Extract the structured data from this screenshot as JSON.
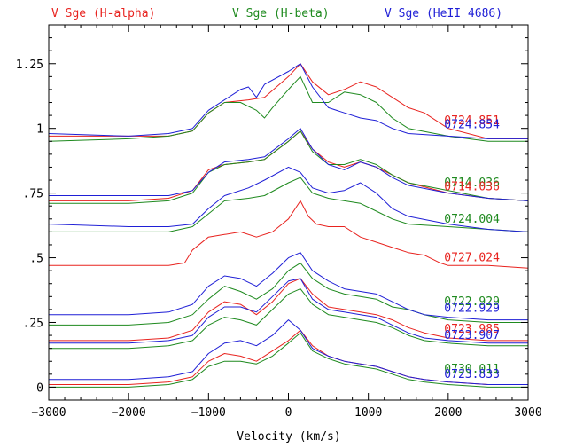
{
  "chart_data": {
    "type": "line",
    "title": "",
    "xlabel": "Velocity (km/s)",
    "ylabel": "",
    "xlim": [
      -3000,
      3000
    ],
    "ylim": [
      -0.05,
      1.4
    ],
    "x_ticks": [
      -3000,
      -2000,
      -1000,
      0,
      1000,
      2000,
      3000
    ],
    "x_tick_labels": [
      "−3000",
      "−2000",
      "−1000",
      "0",
      "1000",
      "2000",
      "3000"
    ],
    "y_ticks": [
      0,
      0.25,
      0.5,
      0.75,
      1,
      1.25
    ],
    "y_tick_labels": [
      "0",
      ".25",
      ".5",
      ".75",
      "1",
      "1.25"
    ],
    "grid": false,
    "legend": [
      {
        "label": "V Sge (H-alpha)",
        "color": "#e8231f"
      },
      {
        "label": "V Sge (H-beta)",
        "color": "#1f8a1f"
      },
      {
        "label": "V Sge (HeII 4686)",
        "color": "#1f1fd6"
      }
    ],
    "annotations": [
      {
        "text": "0724.851",
        "color": "#e8231f",
        "x": 1950,
        "y": 1.03
      },
      {
        "text": "0724.854",
        "color": "#1f1fd6",
        "x": 1950,
        "y": 1.015
      },
      {
        "text": "0714.036",
        "color": "#1f8a1f",
        "x": 1950,
        "y": 0.79
      },
      {
        "text": "0714.036",
        "color": "#e8231f",
        "x": 1950,
        "y": 0.775
      },
      {
        "text": "0724.004",
        "color": "#1f8a1f",
        "x": 1950,
        "y": 0.65
      },
      {
        "text": "0727.024",
        "color": "#e8231f",
        "x": 1950,
        "y": 0.5
      },
      {
        "text": "0722.929",
        "color": "#1f8a1f",
        "x": 1950,
        "y": 0.33
      },
      {
        "text": "0722.929",
        "color": "#1f1fd6",
        "x": 1950,
        "y": 0.305
      },
      {
        "text": "0723.985",
        "color": "#e8231f",
        "x": 1950,
        "y": 0.225
      },
      {
        "text": "0723.907",
        "color": "#1f1fd6",
        "x": 1950,
        "y": 0.2
      },
      {
        "text": "0730.011",
        "color": "#1f8a1f",
        "x": 1950,
        "y": 0.07
      },
      {
        "text": "0723.833",
        "color": "#1f1fd6",
        "x": 1950,
        "y": 0.05
      }
    ],
    "series": [
      {
        "color": "#e8231f",
        "x": [
          -3000,
          -2000,
          -1500,
          -1200,
          -1000,
          -800,
          -500,
          -300,
          0,
          150,
          300,
          500,
          700,
          900,
          1100,
          1300,
          1500,
          1700,
          2000,
          2500,
          3000
        ],
        "y": [
          0.97,
          0.97,
          0.97,
          0.99,
          1.06,
          1.1,
          1.11,
          1.12,
          1.2,
          1.25,
          1.18,
          1.13,
          1.15,
          1.18,
          1.16,
          1.12,
          1.08,
          1.06,
          1.0,
          0.96,
          0.96
        ]
      },
      {
        "color": "#1f8a1f",
        "x": [
          -3000,
          -2000,
          -1500,
          -1200,
          -1000,
          -800,
          -600,
          -400,
          -300,
          -200,
          0,
          150,
          300,
          500,
          700,
          900,
          1100,
          1300,
          1500,
          2000,
          2500,
          3000
        ],
        "y": [
          0.95,
          0.96,
          0.97,
          0.99,
          1.06,
          1.1,
          1.1,
          1.07,
          1.04,
          1.08,
          1.15,
          1.2,
          1.1,
          1.1,
          1.14,
          1.13,
          1.1,
          1.04,
          1.0,
          0.97,
          0.95,
          0.95
        ]
      },
      {
        "color": "#1f1fd6",
        "x": [
          -3000,
          -2000,
          -1500,
          -1200,
          -1000,
          -800,
          -600,
          -500,
          -400,
          -300,
          0,
          150,
          300,
          500,
          700,
          900,
          1100,
          1300,
          1500,
          2000,
          2500,
          3000
        ],
        "y": [
          0.98,
          0.97,
          0.98,
          1.0,
          1.07,
          1.11,
          1.15,
          1.16,
          1.12,
          1.17,
          1.22,
          1.25,
          1.16,
          1.08,
          1.06,
          1.04,
          1.03,
          1.0,
          0.98,
          0.97,
          0.96,
          0.96
        ]
      },
      {
        "color": "#e8231f",
        "x": [
          -3000,
          -2000,
          -1500,
          -1200,
          -1000,
          -800,
          -500,
          -300,
          0,
          150,
          300,
          500,
          700,
          900,
          1100,
          1300,
          1500,
          2000,
          2500,
          3000
        ],
        "y": [
          0.72,
          0.72,
          0.73,
          0.76,
          0.84,
          0.86,
          0.87,
          0.88,
          0.95,
          0.99,
          0.92,
          0.87,
          0.85,
          0.87,
          0.85,
          0.82,
          0.79,
          0.75,
          0.73,
          0.72
        ]
      },
      {
        "color": "#1f8a1f",
        "x": [
          -3000,
          -2000,
          -1500,
          -1200,
          -1000,
          -800,
          -500,
          -300,
          0,
          150,
          300,
          500,
          700,
          900,
          1100,
          1300,
          1500,
          2000,
          2500,
          3000
        ],
        "y": [
          0.71,
          0.71,
          0.72,
          0.75,
          0.83,
          0.86,
          0.87,
          0.88,
          0.95,
          0.99,
          0.91,
          0.86,
          0.86,
          0.88,
          0.86,
          0.82,
          0.79,
          0.76,
          0.73,
          0.72
        ]
      },
      {
        "color": "#1f1fd6",
        "x": [
          -3000,
          -2000,
          -1500,
          -1200,
          -1000,
          -800,
          -500,
          -300,
          0,
          150,
          300,
          500,
          700,
          900,
          1100,
          1300,
          1500,
          2000,
          2500,
          3000
        ],
        "y": [
          0.74,
          0.74,
          0.74,
          0.76,
          0.83,
          0.87,
          0.88,
          0.89,
          0.96,
          1.0,
          0.92,
          0.86,
          0.84,
          0.87,
          0.85,
          0.81,
          0.78,
          0.75,
          0.73,
          0.72
        ]
      },
      {
        "color": "#1f8a1f",
        "x": [
          -3000,
          -2000,
          -1500,
          -1200,
          -1000,
          -800,
          -500,
          -300,
          0,
          150,
          300,
          500,
          700,
          900,
          1100,
          1300,
          1500,
          2000,
          2500,
          3000
        ],
        "y": [
          0.6,
          0.6,
          0.6,
          0.62,
          0.67,
          0.72,
          0.73,
          0.74,
          0.79,
          0.81,
          0.75,
          0.73,
          0.72,
          0.71,
          0.68,
          0.65,
          0.63,
          0.62,
          0.61,
          0.6
        ]
      },
      {
        "color": "#1f1fd6",
        "x": [
          -3000,
          -2000,
          -1500,
          -1200,
          -1000,
          -800,
          -500,
          -300,
          0,
          150,
          300,
          500,
          700,
          900,
          1100,
          1300,
          1500,
          2000,
          2500,
          3000
        ],
        "y": [
          0.63,
          0.62,
          0.62,
          0.63,
          0.69,
          0.74,
          0.77,
          0.8,
          0.85,
          0.83,
          0.77,
          0.75,
          0.76,
          0.79,
          0.75,
          0.69,
          0.66,
          0.63,
          0.61,
          0.6
        ]
      },
      {
        "color": "#e8231f",
        "x": [
          -3000,
          -2000,
          -1500,
          -1300,
          -1200,
          -1000,
          -800,
          -600,
          -400,
          -200,
          0,
          150,
          250,
          350,
          500,
          700,
          900,
          1100,
          1300,
          1500,
          1700,
          1900,
          2000,
          2500,
          3000
        ],
        "y": [
          0.47,
          0.47,
          0.47,
          0.48,
          0.53,
          0.58,
          0.59,
          0.6,
          0.58,
          0.6,
          0.65,
          0.72,
          0.66,
          0.63,
          0.62,
          0.62,
          0.58,
          0.56,
          0.54,
          0.52,
          0.51,
          0.48,
          0.47,
          0.47,
          0.46
        ]
      },
      {
        "color": "#1f8a1f",
        "x": [
          -3000,
          -2000,
          -1500,
          -1200,
          -1000,
          -800,
          -600,
          -400,
          -200,
          0,
          150,
          300,
          500,
          700,
          900,
          1100,
          1300,
          1500,
          1700,
          2000,
          2500,
          3000
        ],
        "y": [
          0.24,
          0.24,
          0.25,
          0.28,
          0.34,
          0.39,
          0.37,
          0.34,
          0.38,
          0.45,
          0.48,
          0.42,
          0.38,
          0.36,
          0.35,
          0.34,
          0.31,
          0.3,
          0.28,
          0.26,
          0.25,
          0.25
        ]
      },
      {
        "color": "#1f1fd6",
        "x": [
          -3000,
          -2000,
          -1500,
          -1200,
          -1000,
          -800,
          -600,
          -400,
          -200,
          0,
          150,
          300,
          500,
          700,
          900,
          1100,
          1300,
          1500,
          1700,
          2000,
          2500,
          3000
        ],
        "y": [
          0.28,
          0.28,
          0.29,
          0.32,
          0.39,
          0.43,
          0.42,
          0.39,
          0.44,
          0.5,
          0.52,
          0.45,
          0.41,
          0.38,
          0.37,
          0.36,
          0.33,
          0.3,
          0.28,
          0.27,
          0.26,
          0.26
        ]
      },
      {
        "color": "#e8231f",
        "x": [
          -3000,
          -2000,
          -1500,
          -1200,
          -1000,
          -800,
          -600,
          -400,
          -200,
          0,
          150,
          300,
          500,
          700,
          900,
          1100,
          1300,
          1500,
          1700,
          2000,
          2500,
          3000
        ],
        "y": [
          0.18,
          0.18,
          0.19,
          0.22,
          0.29,
          0.33,
          0.32,
          0.28,
          0.33,
          0.4,
          0.42,
          0.36,
          0.31,
          0.3,
          0.29,
          0.28,
          0.26,
          0.23,
          0.21,
          0.19,
          0.18,
          0.18
        ]
      },
      {
        "color": "#1f8a1f",
        "x": [
          -3000,
          -2000,
          -1500,
          -1200,
          -1000,
          -800,
          -600,
          -400,
          -200,
          0,
          150,
          300,
          500,
          700,
          900,
          1100,
          1300,
          1500,
          1700,
          2000,
          2500,
          3000
        ],
        "y": [
          0.15,
          0.15,
          0.16,
          0.18,
          0.24,
          0.27,
          0.26,
          0.24,
          0.3,
          0.36,
          0.38,
          0.32,
          0.28,
          0.27,
          0.26,
          0.25,
          0.23,
          0.2,
          0.18,
          0.17,
          0.16,
          0.16
        ]
      },
      {
        "color": "#1f1fd6",
        "x": [
          -3000,
          -2000,
          -1500,
          -1200,
          -1000,
          -800,
          -600,
          -400,
          -200,
          0,
          150,
          300,
          500,
          700,
          900,
          1100,
          1300,
          1500,
          1700,
          2000,
          2500,
          3000
        ],
        "y": [
          0.17,
          0.17,
          0.18,
          0.2,
          0.27,
          0.31,
          0.31,
          0.29,
          0.35,
          0.41,
          0.42,
          0.34,
          0.3,
          0.29,
          0.28,
          0.27,
          0.24,
          0.21,
          0.19,
          0.18,
          0.17,
          0.17
        ]
      },
      {
        "color": "#e8231f",
        "x": [
          -3000,
          -2000,
          -1500,
          -1200,
          -1000,
          -800,
          -600,
          -400,
          -200,
          0,
          150,
          300,
          500,
          700,
          900,
          1100,
          1300,
          1500,
          1700,
          2000,
          2500,
          3000
        ],
        "y": [
          0.01,
          0.01,
          0.02,
          0.04,
          0.1,
          0.13,
          0.12,
          0.1,
          0.14,
          0.18,
          0.22,
          0.16,
          0.12,
          0.1,
          0.09,
          0.08,
          0.06,
          0.04,
          0.03,
          0.02,
          0.01,
          0.01
        ]
      },
      {
        "color": "#1f8a1f",
        "x": [
          -3000,
          -2000,
          -1500,
          -1200,
          -1000,
          -800,
          -600,
          -400,
          -200,
          0,
          150,
          300,
          500,
          700,
          900,
          1100,
          1300,
          1500,
          1700,
          2000,
          2500,
          3000
        ],
        "y": [
          0.0,
          0.0,
          0.01,
          0.03,
          0.08,
          0.1,
          0.1,
          0.09,
          0.12,
          0.17,
          0.21,
          0.14,
          0.11,
          0.09,
          0.08,
          0.07,
          0.05,
          0.03,
          0.02,
          0.01,
          0.0,
          0.0
        ]
      },
      {
        "color": "#1f1fd6",
        "x": [
          -3000,
          -2000,
          -1500,
          -1200,
          -1000,
          -800,
          -600,
          -400,
          -200,
          0,
          150,
          300,
          500,
          700,
          900,
          1100,
          1300,
          1500,
          1700,
          2000,
          2500,
          3000
        ],
        "y": [
          0.03,
          0.03,
          0.04,
          0.06,
          0.13,
          0.17,
          0.18,
          0.16,
          0.2,
          0.26,
          0.22,
          0.15,
          0.12,
          0.1,
          0.09,
          0.08,
          0.06,
          0.04,
          0.03,
          0.02,
          0.01,
          0.01
        ]
      }
    ]
  }
}
